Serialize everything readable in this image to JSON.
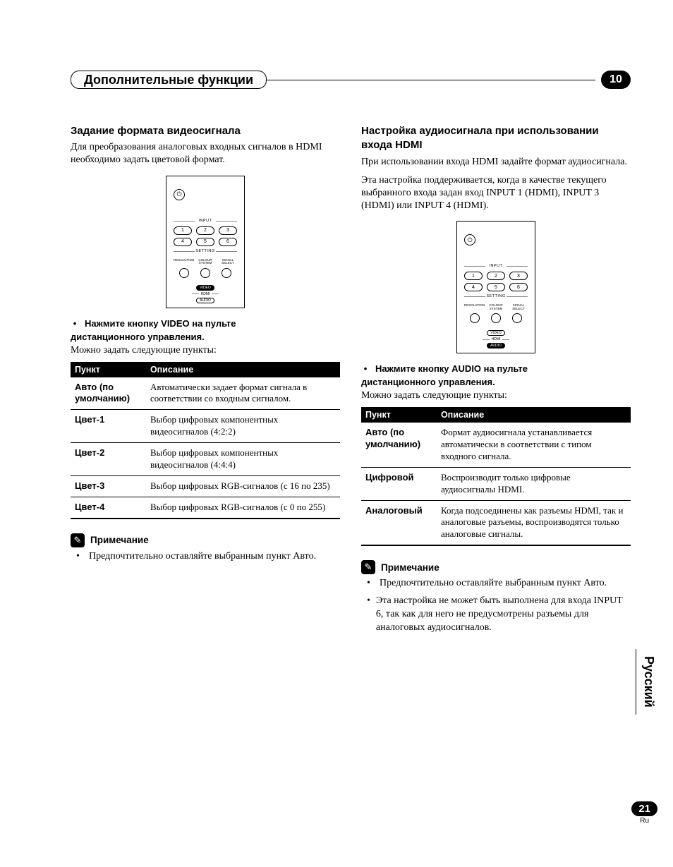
{
  "chapter": {
    "title": "Дополнительные функции",
    "number": "10"
  },
  "page": {
    "number": "21",
    "langShort": "Ru",
    "sideTab": "Русский"
  },
  "remote": {
    "inputLabel": "INPUT",
    "settingLabel": "SETTING",
    "inputs": [
      "1",
      "2",
      "3",
      "4",
      "5",
      "6"
    ],
    "settingLabels": [
      "RESOLUTION",
      "COLOUR SYSTEM",
      "SIGNAL SELECT"
    ],
    "hdmi": {
      "video": "VIDEO",
      "mid": "HDMI",
      "audio": "AUDIO"
    }
  },
  "left": {
    "heading": "Задание формата видеосигнала",
    "intro": "Для преобразования аналоговых входных сигналов в HDMI необходимо задать цветовой формат.",
    "step1a": "Нажмите кнопку VIDEO на пульте",
    "step1b": "дистанционного управления.",
    "avail": "Можно задать следующие пункты:",
    "table": {
      "head": [
        "Пункт",
        "Описание"
      ],
      "rows": [
        [
          "Авто (по умолчанию)",
          "Автоматически задает формат сигнала в соответствии со входным сигналом."
        ],
        [
          "Цвет-1",
          "Выбор цифровых компонентных видеосигналов (4:2:2)"
        ],
        [
          "Цвет-2",
          "Выбор цифровых компонентных видеосигналов (4:4:4)"
        ],
        [
          "Цвет-3",
          "Выбор цифровых RGB-сигналов (с 16 по 235)"
        ],
        [
          "Цвет-4",
          "Выбор цифровых RGB-сигналов (с 0 по 255)"
        ]
      ]
    },
    "noteTitle": "Примечание",
    "notes": [
      "Предпочтительно оставляйте выбранным пункт Авто."
    ]
  },
  "right": {
    "heading": "Настройка аудиосигнала при использовании входа HDMI",
    "intro1": "При использовании входа HDMI задайте формат аудиосигнала.",
    "intro2": "Эта настройка поддерживается, когда в качестве текущего выбранного входа задан вход INPUT 1 (HDMI), INPUT 3 (HDMI) или INPUT 4 (HDMI).",
    "step1a": "Нажмите кнопку AUDIO на пульте",
    "step1b": "дистанционного управления.",
    "avail": "Можно задать следующие пункты:",
    "table": {
      "head": [
        "Пункт",
        "Описание"
      ],
      "rows": [
        [
          "Авто (по умолчанию)",
          "Формат аудиосигнала устанавливается автоматически в соответствии с типом входного сигнала."
        ],
        [
          "Цифровой",
          "Воспроизводит только цифровые аудиосигналы HDMI."
        ],
        [
          "Аналоговый",
          "Когда подсоединены как разъемы HDMI, так и аналоговые разъемы, воспроизводятся только аналоговые сигналы."
        ]
      ]
    },
    "noteTitle": "Примечание",
    "notes": [
      "Предпочтительно оставляйте выбранным пункт Авто.",
      "Эта настройка не может быть выполнена для входа INPUT 6, так как для него не предусмотрены разъемы для аналоговых аудиосигналов."
    ]
  }
}
